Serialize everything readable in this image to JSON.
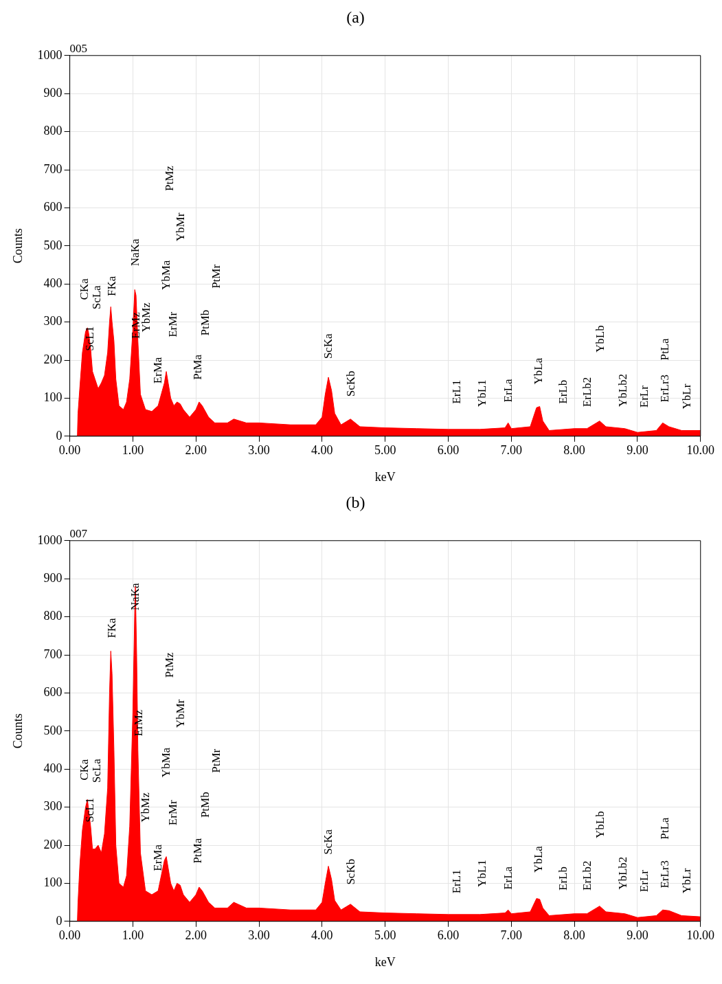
{
  "chart_data": [
    {
      "type": "area",
      "title": "(a)",
      "subtitle": "005",
      "xlabel": "keV",
      "ylabel": "Counts",
      "color": "#ff0000",
      "grid": true,
      "xlim": [
        0,
        10
      ],
      "ylim": [
        0,
        1000
      ],
      "xticks": [
        {
          "value": 0,
          "label": "0.00"
        },
        {
          "value": 1,
          "label": "1.00"
        },
        {
          "value": 2,
          "label": "2.00"
        },
        {
          "value": 3,
          "label": "3.00"
        },
        {
          "value": 4,
          "label": "4.00"
        },
        {
          "value": 5,
          "label": "5.00"
        },
        {
          "value": 6,
          "label": "6.00"
        },
        {
          "value": 7,
          "label": "7.00"
        },
        {
          "value": 8,
          "label": "8.00"
        },
        {
          "value": 9,
          "label": "9.00"
        },
        {
          "value": 10,
          "label": "10.00"
        }
      ],
      "yticks": [
        0,
        100,
        200,
        300,
        400,
        500,
        600,
        700,
        800,
        900,
        1000
      ],
      "x": [
        0.12,
        0.13,
        0.16,
        0.2,
        0.25,
        0.28,
        0.3,
        0.33,
        0.36,
        0.4,
        0.45,
        0.5,
        0.55,
        0.6,
        0.63,
        0.65,
        0.67,
        0.7,
        0.73,
        0.78,
        0.85,
        0.9,
        0.95,
        1.0,
        1.03,
        1.05,
        1.08,
        1.12,
        1.2,
        1.3,
        1.4,
        1.45,
        1.5,
        1.53,
        1.56,
        1.6,
        1.65,
        1.7,
        1.75,
        1.8,
        1.9,
        2.0,
        2.05,
        2.1,
        2.2,
        2.3,
        2.5,
        2.6,
        2.8,
        3.0,
        3.5,
        3.9,
        4.0,
        4.05,
        4.1,
        4.15,
        4.2,
        4.3,
        4.45,
        4.6,
        5.0,
        5.5,
        6.0,
        6.5,
        6.9,
        6.95,
        7.0,
        7.3,
        7.4,
        7.45,
        7.5,
        7.6,
        8.0,
        8.2,
        8.35,
        8.4,
        8.5,
        8.8,
        9.0,
        9.3,
        9.4,
        9.5,
        9.7,
        10.0
      ],
      "values": [
        0,
        60,
        130,
        220,
        275,
        285,
        270,
        230,
        170,
        150,
        125,
        140,
        160,
        220,
        300,
        340,
        300,
        250,
        150,
        80,
        70,
        90,
        150,
        280,
        385,
        370,
        250,
        110,
        70,
        65,
        80,
        110,
        140,
        170,
        140,
        100,
        80,
        90,
        85,
        70,
        50,
        70,
        90,
        80,
        50,
        35,
        35,
        45,
        35,
        35,
        30,
        30,
        50,
        110,
        155,
        120,
        60,
        30,
        45,
        25,
        22,
        20,
        18,
        18,
        22,
        35,
        20,
        25,
        75,
        78,
        40,
        15,
        20,
        20,
        35,
        40,
        25,
        20,
        10,
        15,
        35,
        25,
        15,
        15
      ],
      "annotations": [
        "ScL1",
        "CKa",
        "ScLa",
        "FKa",
        "NaKa",
        "ErMz",
        "YbMz",
        "ErMa",
        "YbMa",
        "PtMz",
        "ErMr",
        "YbMr",
        "PtMa",
        "PtMb",
        "PtMr",
        "ScKa",
        "ScKb",
        "ErL1",
        "YbL1",
        "ErLa",
        "YbLa",
        "ErLb",
        "ErLb2",
        "YbLb",
        "YbLb2",
        "ErLr",
        "ErLr3",
        "PtLa",
        "YbLr"
      ]
    },
    {
      "type": "area",
      "title": "(b)",
      "subtitle": "007",
      "xlabel": "keV",
      "ylabel": "Counts",
      "color": "#ff0000",
      "grid": true,
      "xlim": [
        0,
        10
      ],
      "ylim": [
        0,
        1000
      ],
      "xticks": [
        {
          "value": 0,
          "label": "0.00"
        },
        {
          "value": 1,
          "label": "1.00"
        },
        {
          "value": 2,
          "label": "2.00"
        },
        {
          "value": 3,
          "label": "3.00"
        },
        {
          "value": 4,
          "label": "4.00"
        },
        {
          "value": 5,
          "label": "5.00"
        },
        {
          "value": 6,
          "label": "6.00"
        },
        {
          "value": 7,
          "label": "7.00"
        },
        {
          "value": 8,
          "label": "8.00"
        },
        {
          "value": 9,
          "label": "9.00"
        },
        {
          "value": 10,
          "label": "10.00"
        }
      ],
      "yticks": [
        0,
        100,
        200,
        300,
        400,
        500,
        600,
        700,
        800,
        900,
        1000
      ],
      "x": [
        0.12,
        0.13,
        0.16,
        0.2,
        0.25,
        0.28,
        0.3,
        0.33,
        0.36,
        0.4,
        0.45,
        0.5,
        0.55,
        0.6,
        0.63,
        0.65,
        0.67,
        0.7,
        0.73,
        0.78,
        0.85,
        0.9,
        0.95,
        1.0,
        1.03,
        1.04,
        1.06,
        1.08,
        1.12,
        1.2,
        1.3,
        1.4,
        1.45,
        1.5,
        1.53,
        1.56,
        1.6,
        1.65,
        1.7,
        1.75,
        1.8,
        1.9,
        2.0,
        2.05,
        2.1,
        2.2,
        2.3,
        2.5,
        2.6,
        2.8,
        3.0,
        3.5,
        3.9,
        4.0,
        4.05,
        4.1,
        4.15,
        4.2,
        4.3,
        4.45,
        4.6,
        5.0,
        5.5,
        6.0,
        6.5,
        6.9,
        6.95,
        7.0,
        7.3,
        7.4,
        7.45,
        7.5,
        7.6,
        8.0,
        8.2,
        8.35,
        8.4,
        8.5,
        8.8,
        9.0,
        9.3,
        9.4,
        9.5,
        9.7,
        10.0
      ],
      "values": [
        0,
        50,
        150,
        240,
        300,
        320,
        290,
        250,
        190,
        190,
        200,
        180,
        230,
        350,
        600,
        710,
        650,
        450,
        200,
        100,
        90,
        120,
        250,
        550,
        820,
        880,
        700,
        450,
        180,
        80,
        70,
        80,
        120,
        160,
        170,
        140,
        100,
        80,
        100,
        95,
        70,
        50,
        70,
        90,
        80,
        50,
        35,
        35,
        50,
        35,
        35,
        30,
        30,
        50,
        100,
        145,
        110,
        55,
        30,
        45,
        25,
        22,
        20,
        18,
        18,
        22,
        30,
        20,
        25,
        60,
        58,
        35,
        15,
        20,
        20,
        35,
        40,
        25,
        20,
        10,
        15,
        30,
        28,
        15,
        12
      ],
      "annotations": [
        "ScL1",
        "CKa",
        "ScLa",
        "FKa",
        "NaKa",
        "ErMz",
        "YbMz",
        "ErMa",
        "YbMa",
        "PtMz",
        "ErMr",
        "YbMr",
        "PtMa",
        "PtMb",
        "PtMr",
        "ScKa",
        "ScKb",
        "ErL1",
        "YbL1",
        "ErLa",
        "YbLa",
        "ErLb",
        "ErLb2",
        "YbLb",
        "YbLb2",
        "ErLr",
        "ErLr3",
        "PtLa",
        "YbLr"
      ]
    }
  ]
}
